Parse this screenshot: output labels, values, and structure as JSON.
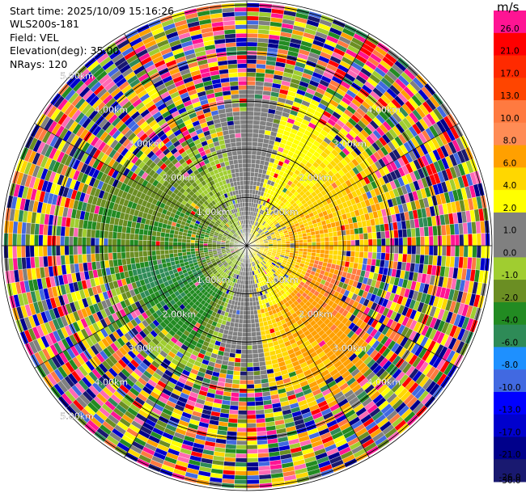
{
  "header": {
    "start_time": "Start time: 2025/10/09 15:16:26",
    "instrument": "WLS200s-181",
    "field": "Field: VEL",
    "elevation": "Elevation(deg): 35.00",
    "nrays": "NRays: 120"
  },
  "colorbar": {
    "unit": "m/s",
    "ticks": [
      "26.0",
      "21.0",
      "17.0",
      "13.0",
      "10.0",
      "8.0",
      "6.0",
      "4.0",
      "2.0",
      "1.0",
      "0.0",
      "-1.0",
      "-2.0",
      "-4.0",
      "-6.0",
      "-8.0",
      "-10.0",
      "-13.0",
      "-17.0",
      "-21.0",
      "-26.0",
      "-30.0"
    ],
    "colors": [
      "#ff1493",
      "#ff0000",
      "#ff2a00",
      "#ff4500",
      "#ff7a40",
      "#ff8c55",
      "#ffa000",
      "#ffd700",
      "#ffff00",
      "#808080",
      "#808080",
      "#a0cd30",
      "#6b8e23",
      "#228b22",
      "#2e8b57",
      "#1e90ff",
      "#4169e1",
      "#0000ff",
      "#0000cd",
      "#00008b",
      "#191970"
    ]
  },
  "rings": {
    "labels": [
      "1.00km",
      "2.00km",
      "3.00km",
      "4.00km",
      "5.00km"
    ],
    "max_range_km": 5.0
  }
}
